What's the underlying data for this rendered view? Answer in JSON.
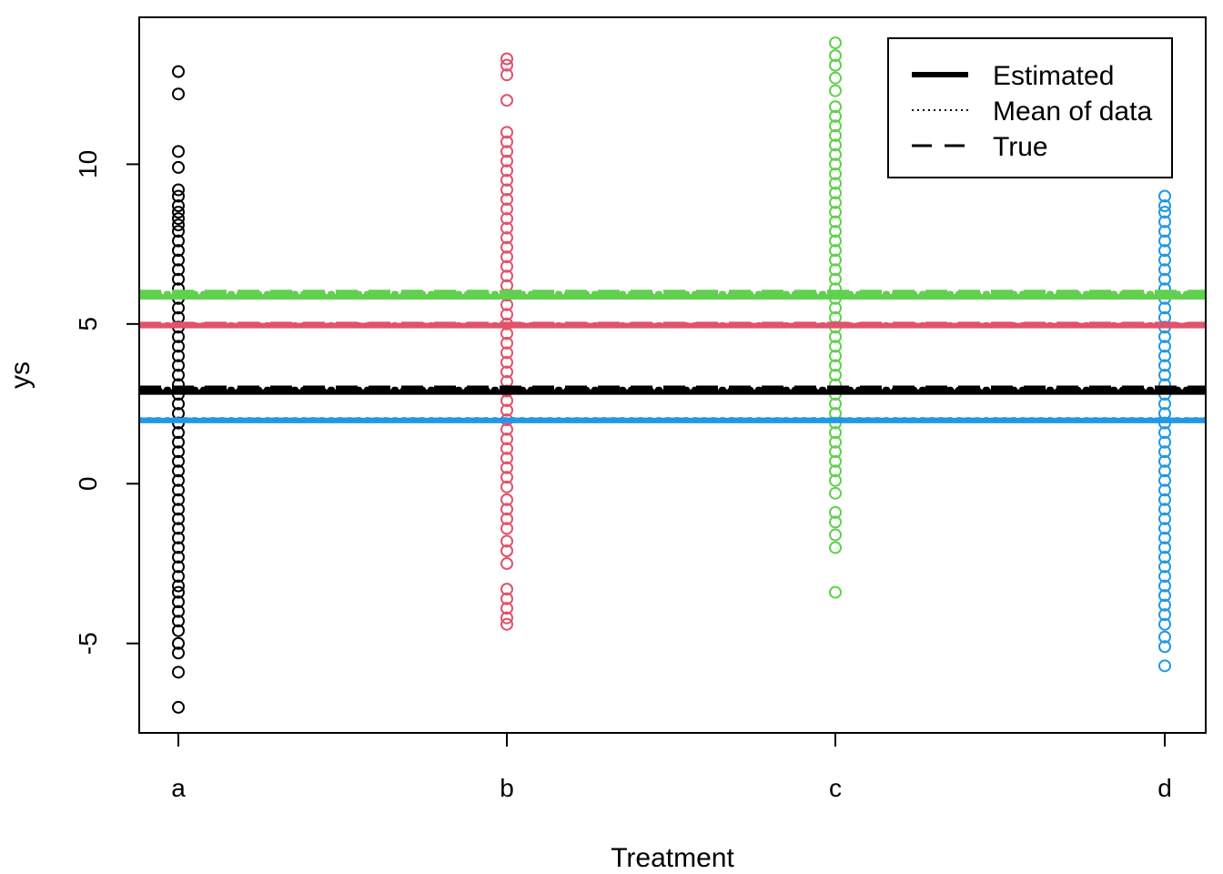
{
  "chart_data": {
    "type": "scatter",
    "xlabel": "Treatment",
    "ylabel": "ys",
    "categories": [
      "a",
      "b",
      "c",
      "d"
    ],
    "ylim": [
      -7.8,
      14.6
    ],
    "y_ticks": [
      -5,
      0,
      5,
      10
    ],
    "grid": false,
    "legend": {
      "placement": "top-right",
      "entries": [
        {
          "label": "Estimated",
          "style": "solid-thick"
        },
        {
          "label": "Mean of data",
          "style": "dotted"
        },
        {
          "label": "True",
          "style": "dashed"
        }
      ]
    },
    "colors": {
      "a": "#000000",
      "b": "#DF536B",
      "c": "#61D04F",
      "d": "#2297E6"
    },
    "groups": [
      {
        "category": "a",
        "color": "#000000",
        "estimated": 2.87,
        "mean": 2.95,
        "true": 3.0,
        "points": [
          12.9,
          12.2,
          10.4,
          9.9,
          9.2,
          9.0,
          8.7,
          8.5,
          8.3,
          8.1,
          7.9,
          7.6,
          7.3,
          7.0,
          6.7,
          6.4,
          6.1,
          5.8,
          5.5,
          5.2,
          4.9,
          4.6,
          4.3,
          4.0,
          3.7,
          3.4,
          3.1,
          2.8,
          2.5,
          2.2,
          1.9,
          1.6,
          1.3,
          1.0,
          0.7,
          0.4,
          0.1,
          -0.2,
          -0.5,
          -0.8,
          -1.1,
          -1.4,
          -1.7,
          -2.0,
          -2.3,
          -2.6,
          -2.9,
          -3.2,
          -3.4,
          -3.7,
          -4.0,
          -4.3,
          -4.6,
          -5.0,
          -5.3,
          -5.9,
          -7.0
        ]
      },
      {
        "category": "b",
        "color": "#DF536B",
        "estimated": 4.95,
        "mean": 4.97,
        "true": 5.0,
        "points": [
          13.3,
          13.1,
          12.8,
          12.0,
          11.0,
          10.7,
          10.4,
          10.1,
          9.8,
          9.5,
          9.2,
          8.9,
          8.6,
          8.3,
          8.0,
          7.7,
          7.4,
          7.1,
          6.8,
          6.5,
          6.2,
          5.9,
          5.6,
          5.3,
          5.0,
          4.7,
          4.4,
          4.1,
          3.8,
          3.5,
          3.2,
          2.9,
          2.6,
          2.3,
          2.0,
          1.7,
          1.4,
          1.1,
          0.8,
          0.5,
          0.2,
          -0.1,
          -0.5,
          -0.8,
          -1.1,
          -1.4,
          -1.8,
          -2.1,
          -2.5,
          -3.3,
          -3.6,
          -3.9,
          -4.2,
          -4.4
        ]
      },
      {
        "category": "c",
        "color": "#61D04F",
        "estimated": 5.85,
        "mean": 5.95,
        "true": 6.0,
        "points": [
          13.8,
          13.4,
          13.1,
          12.7,
          12.3,
          11.8,
          11.5,
          11.2,
          10.9,
          10.6,
          10.3,
          10.0,
          9.7,
          9.4,
          9.1,
          8.8,
          8.5,
          8.2,
          7.9,
          7.6,
          7.3,
          7.0,
          6.7,
          6.4,
          6.1,
          5.8,
          5.5,
          5.2,
          4.9,
          4.6,
          4.3,
          4.0,
          3.7,
          3.4,
          3.1,
          2.8,
          2.5,
          2.2,
          1.9,
          1.6,
          1.3,
          1.0,
          0.7,
          0.4,
          0.1,
          -0.3,
          -0.9,
          -1.2,
          -1.6,
          -2.0,
          -3.4
        ]
      },
      {
        "category": "d",
        "color": "#2297E6",
        "estimated": 1.98,
        "mean": 2.0,
        "true": 2.0,
        "points": [
          9.0,
          8.7,
          8.5,
          8.2,
          7.9,
          7.6,
          7.3,
          7.0,
          6.7,
          6.4,
          6.1,
          5.8,
          5.5,
          5.2,
          4.9,
          4.6,
          4.3,
          4.0,
          3.7,
          3.4,
          3.1,
          2.8,
          2.5,
          2.2,
          1.9,
          1.6,
          1.3,
          1.0,
          0.7,
          0.4,
          0.1,
          -0.2,
          -0.5,
          -0.8,
          -1.1,
          -1.4,
          -1.7,
          -2.0,
          -2.3,
          -2.6,
          -2.9,
          -3.2,
          -3.5,
          -3.8,
          -4.1,
          -4.4,
          -4.8,
          -5.1,
          -5.7
        ]
      }
    ]
  }
}
